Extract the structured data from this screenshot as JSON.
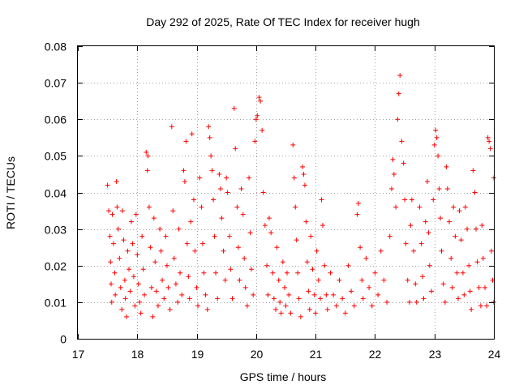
{
  "chart_data": {
    "type": "scatter",
    "title": "Day 292 of 2025, Rate Of TEC Index for receiver hugh",
    "xlabel": "GPS time / hours",
    "ylabel": "ROTI / TECUs",
    "xlim": [
      17,
      24
    ],
    "ylim": [
      0,
      0.08
    ],
    "x_ticks": [
      "17",
      "18",
      "19",
      "20",
      "21",
      "22",
      "23",
      "24"
    ],
    "y_ticks": [
      "0",
      "0.01",
      "0.02",
      "0.03",
      "0.04",
      "0.05",
      "0.06",
      "0.07",
      "0.08"
    ],
    "grid": true,
    "marker": "+",
    "color": "#ff0000",
    "series": [
      {
        "points": [
          [
            17.5,
            0.042
          ],
          [
            17.52,
            0.035
          ],
          [
            17.54,
            0.028
          ],
          [
            17.55,
            0.021
          ],
          [
            17.56,
            0.015
          ],
          [
            17.57,
            0.01
          ],
          [
            17.58,
            0.034
          ],
          [
            17.6,
            0.026
          ],
          [
            17.62,
            0.018
          ],
          [
            17.63,
            0.012
          ],
          [
            17.65,
            0.043
          ],
          [
            17.66,
            0.036
          ],
          [
            17.68,
            0.03
          ],
          [
            17.7,
            0.022
          ],
          [
            17.72,
            0.014
          ],
          [
            17.74,
            0.008
          ],
          [
            17.75,
            0.035
          ],
          [
            17.77,
            0.027
          ],
          [
            17.79,
            0.016
          ],
          [
            17.8,
            0.011
          ],
          [
            17.82,
            0.006
          ],
          [
            17.84,
            0.024
          ],
          [
            17.86,
            0.019
          ],
          [
            17.88,
            0.013
          ],
          [
            17.9,
            0.032
          ],
          [
            17.92,
            0.026
          ],
          [
            17.94,
            0.017
          ],
          [
            17.96,
            0.009
          ],
          [
            17.98,
            0.034
          ],
          [
            18.0,
            0.023
          ],
          [
            18.02,
            0.015
          ],
          [
            18.04,
            0.01
          ],
          [
            18.06,
            0.007
          ],
          [
            18.08,
            0.028
          ],
          [
            18.1,
            0.019
          ],
          [
            18.12,
            0.012
          ],
          [
            18.15,
            0.051
          ],
          [
            18.17,
            0.046
          ],
          [
            18.18,
            0.05
          ],
          [
            18.2,
            0.036
          ],
          [
            18.22,
            0.025
          ],
          [
            18.24,
            0.014
          ],
          [
            18.26,
            0.006
          ],
          [
            18.28,
            0.033
          ],
          [
            18.3,
            0.021
          ],
          [
            18.32,
            0.013
          ],
          [
            18.35,
            0.009
          ],
          [
            18.38,
            0.03
          ],
          [
            18.4,
            0.024
          ],
          [
            18.42,
            0.016
          ],
          [
            18.45,
            0.011
          ],
          [
            18.48,
            0.028
          ],
          [
            18.5,
            0.02
          ],
          [
            18.52,
            0.014
          ],
          [
            18.55,
            0.008
          ],
          [
            18.58,
            0.058
          ],
          [
            18.6,
            0.035
          ],
          [
            18.62,
            0.022
          ],
          [
            18.65,
            0.015
          ],
          [
            18.68,
            0.01
          ],
          [
            18.7,
            0.03
          ],
          [
            18.72,
            0.018
          ],
          [
            18.75,
            0.012
          ],
          [
            18.78,
            0.046
          ],
          [
            18.8,
            0.043
          ],
          [
            18.82,
            0.054
          ],
          [
            18.84,
            0.026
          ],
          [
            18.86,
            0.017
          ],
          [
            18.88,
            0.011
          ],
          [
            18.9,
            0.032
          ],
          [
            18.92,
            0.056
          ],
          [
            18.95,
            0.038
          ],
          [
            18.97,
            0.024
          ],
          [
            19.0,
            0.014
          ],
          [
            19.02,
            0.009
          ],
          [
            19.05,
            0.044
          ],
          [
            19.08,
            0.036
          ],
          [
            19.1,
            0.026
          ],
          [
            19.12,
            0.018
          ],
          [
            19.15,
            0.012
          ],
          [
            19.18,
            0.008
          ],
          [
            19.2,
            0.058
          ],
          [
            19.22,
            0.055
          ],
          [
            19.24,
            0.05
          ],
          [
            19.26,
            0.046
          ],
          [
            19.28,
            0.038
          ],
          [
            19.3,
            0.028
          ],
          [
            19.32,
            0.018
          ],
          [
            19.35,
            0.011
          ],
          [
            19.38,
            0.045
          ],
          [
            19.4,
            0.041
          ],
          [
            19.42,
            0.033
          ],
          [
            19.45,
            0.024
          ],
          [
            19.48,
            0.016
          ],
          [
            19.5,
            0.044
          ],
          [
            19.52,
            0.04
          ],
          [
            19.55,
            0.028
          ],
          [
            19.57,
            0.019
          ],
          [
            19.6,
            0.011
          ],
          [
            19.63,
            0.063
          ],
          [
            19.65,
            0.052
          ],
          [
            19.68,
            0.036
          ],
          [
            19.7,
            0.025
          ],
          [
            19.72,
            0.016
          ],
          [
            19.75,
            0.041
          ],
          [
            19.78,
            0.034
          ],
          [
            19.8,
            0.022
          ],
          [
            19.82,
            0.014
          ],
          [
            19.85,
            0.009
          ],
          [
            19.88,
            0.044
          ],
          [
            19.9,
            0.029
          ],
          [
            19.92,
            0.019
          ],
          [
            19.95,
            0.012
          ],
          [
            19.98,
            0.054
          ],
          [
            20.0,
            0.06
          ],
          [
            20.02,
            0.061
          ],
          [
            20.05,
            0.066
          ],
          [
            20.07,
            0.065
          ],
          [
            20.1,
            0.057
          ],
          [
            20.12,
            0.04
          ],
          [
            20.15,
            0.031
          ],
          [
            20.18,
            0.02
          ],
          [
            20.2,
            0.012
          ],
          [
            20.22,
            0.033
          ],
          [
            20.25,
            0.029
          ],
          [
            20.28,
            0.018
          ],
          [
            20.3,
            0.011
          ],
          [
            20.33,
            0.008
          ],
          [
            20.35,
            0.025
          ],
          [
            20.38,
            0.016
          ],
          [
            20.4,
            0.01
          ],
          [
            20.42,
            0.007
          ],
          [
            20.45,
            0.021
          ],
          [
            20.48,
            0.014
          ],
          [
            20.5,
            0.009
          ],
          [
            20.52,
            0.018
          ],
          [
            20.55,
            0.012
          ],
          [
            20.58,
            0.007
          ],
          [
            20.62,
            0.053
          ],
          [
            20.64,
            0.044
          ],
          [
            20.66,
            0.036
          ],
          [
            20.68,
            0.027
          ],
          [
            20.7,
            0.018
          ],
          [
            20.72,
            0.011
          ],
          [
            20.75,
            0.006
          ],
          [
            20.78,
            0.047
          ],
          [
            20.8,
            0.045
          ],
          [
            20.82,
            0.042
          ],
          [
            20.84,
            0.032
          ],
          [
            20.86,
            0.021
          ],
          [
            20.88,
            0.013
          ],
          [
            20.9,
            0.008
          ],
          [
            20.92,
            0.028
          ],
          [
            20.95,
            0.019
          ],
          [
            20.98,
            0.012
          ],
          [
            21.0,
            0.007
          ],
          [
            21.02,
            0.024
          ],
          [
            21.05,
            0.016
          ],
          [
            21.08,
            0.011
          ],
          [
            21.1,
            0.038
          ],
          [
            21.12,
            0.031
          ],
          [
            21.15,
            0.02
          ],
          [
            21.18,
            0.012
          ],
          [
            21.2,
            0.008
          ],
          [
            21.25,
            0.018
          ],
          [
            21.3,
            0.012
          ],
          [
            21.35,
            0.009
          ],
          [
            21.4,
            0.016
          ],
          [
            21.45,
            0.011
          ],
          [
            21.5,
            0.007
          ],
          [
            21.55,
            0.02
          ],
          [
            21.6,
            0.013
          ],
          [
            21.65,
            0.009
          ],
          [
            21.7,
            0.034
          ],
          [
            21.72,
            0.037
          ],
          [
            21.75,
            0.025
          ],
          [
            21.78,
            0.016
          ],
          [
            21.8,
            0.011
          ],
          [
            21.85,
            0.022
          ],
          [
            21.9,
            0.014
          ],
          [
            21.95,
            0.009
          ],
          [
            22.0,
            0.018
          ],
          [
            22.05,
            0.012
          ],
          [
            22.1,
            0.024
          ],
          [
            22.15,
            0.016
          ],
          [
            22.2,
            0.01
          ],
          [
            22.25,
            0.028
          ],
          [
            22.28,
            0.041
          ],
          [
            22.3,
            0.049
          ],
          [
            22.32,
            0.045
          ],
          [
            22.35,
            0.036
          ],
          [
            22.38,
            0.06
          ],
          [
            22.4,
            0.067
          ],
          [
            22.42,
            0.072
          ],
          [
            22.45,
            0.054
          ],
          [
            22.48,
            0.048
          ],
          [
            22.5,
            0.038
          ],
          [
            22.52,
            0.026
          ],
          [
            22.55,
            0.016
          ],
          [
            22.58,
            0.01
          ],
          [
            22.6,
            0.031
          ],
          [
            22.62,
            0.038
          ],
          [
            22.65,
            0.024
          ],
          [
            22.68,
            0.015
          ],
          [
            22.7,
            0.01
          ],
          [
            22.75,
            0.036
          ],
          [
            22.78,
            0.026
          ],
          [
            22.8,
            0.017
          ],
          [
            22.82,
            0.011
          ],
          [
            22.85,
            0.032
          ],
          [
            22.88,
            0.043
          ],
          [
            22.9,
            0.029
          ],
          [
            22.92,
            0.02
          ],
          [
            22.95,
            0.013
          ],
          [
            22.98,
            0.038
          ],
          [
            23.0,
            0.053
          ],
          [
            23.02,
            0.057
          ],
          [
            23.04,
            0.055
          ],
          [
            23.06,
            0.05
          ],
          [
            23.08,
            0.041
          ],
          [
            23.1,
            0.033
          ],
          [
            23.12,
            0.024
          ],
          [
            23.15,
            0.015
          ],
          [
            23.18,
            0.01
          ],
          [
            23.2,
            0.047
          ],
          [
            23.22,
            0.041
          ],
          [
            23.25,
            0.032
          ],
          [
            23.28,
            0.022
          ],
          [
            23.3,
            0.014
          ],
          [
            23.32,
            0.036
          ],
          [
            23.35,
            0.028
          ],
          [
            23.38,
            0.018
          ],
          [
            23.4,
            0.011
          ],
          [
            23.42,
            0.035
          ],
          [
            23.45,
            0.027
          ],
          [
            23.48,
            0.018
          ],
          [
            23.5,
            0.012
          ],
          [
            23.52,
            0.036
          ],
          [
            23.55,
            0.03
          ],
          [
            23.58,
            0.02
          ],
          [
            23.6,
            0.013
          ],
          [
            23.62,
            0.008
          ],
          [
            23.65,
            0.046
          ],
          [
            23.68,
            0.04
          ],
          [
            23.7,
            0.03
          ],
          [
            23.72,
            0.021
          ],
          [
            23.75,
            0.014
          ],
          [
            23.78,
            0.009
          ],
          [
            23.8,
            0.031
          ],
          [
            23.82,
            0.022
          ],
          [
            23.85,
            0.014
          ],
          [
            23.88,
            0.009
          ],
          [
            23.9,
            0.055
          ],
          [
            23.92,
            0.054
          ],
          [
            23.94,
            0.052
          ],
          [
            23.96,
            0.024
          ],
          [
            23.98,
            0.016
          ],
          [
            24.0,
            0.044
          ],
          [
            24.0,
            0.01
          ]
        ]
      }
    ]
  }
}
